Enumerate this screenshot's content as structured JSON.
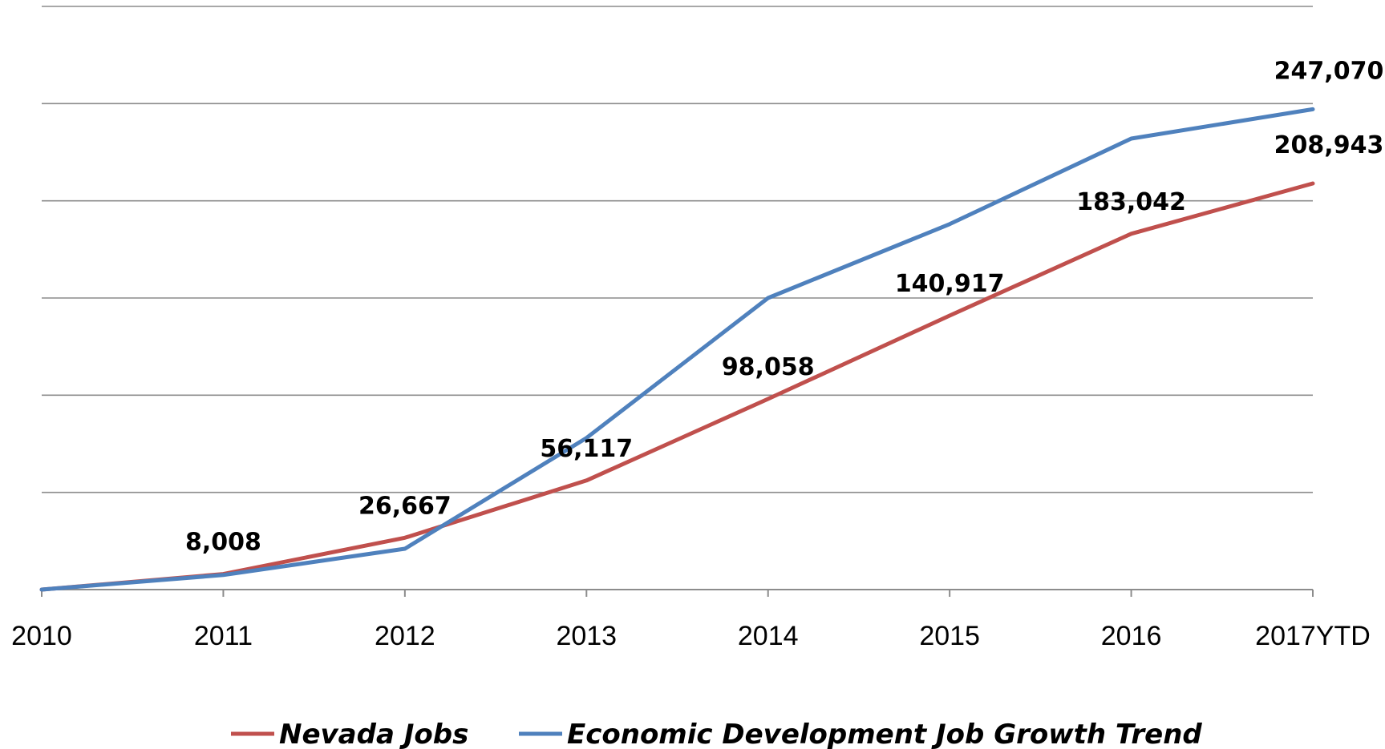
{
  "chart_data": {
    "type": "line",
    "categories": [
      "2010",
      "2011",
      "2012",
      "2013",
      "2014",
      "2015",
      "2016",
      "2017YTD"
    ],
    "series": [
      {
        "name": "Nevada Jobs",
        "color": "#c0504d",
        "values": [
          0,
          8008,
          26667,
          56117,
          98058,
          140917,
          183042,
          208943
        ],
        "labels": [
          "",
          "8,008",
          "26,667",
          "56,117",
          "98,058",
          "140,917",
          "183,042",
          "208,943"
        ]
      },
      {
        "name": "Economic Development Job Growth Trend",
        "color": "#4f81bd",
        "values": [
          0,
          7500,
          21000,
          78000,
          150000,
          188000,
          232000,
          247070
        ],
        "labels": [
          "",
          "",
          "",
          "",
          "",
          "",
          "",
          "247,070"
        ]
      }
    ],
    "ylim": [
      0,
      300000
    ],
    "y_gridlines": [
      0,
      50000,
      100000,
      150000,
      200000,
      250000,
      300000
    ],
    "grid": true,
    "legend_position": "bottom",
    "title": "",
    "xlabel": "",
    "ylabel": ""
  }
}
